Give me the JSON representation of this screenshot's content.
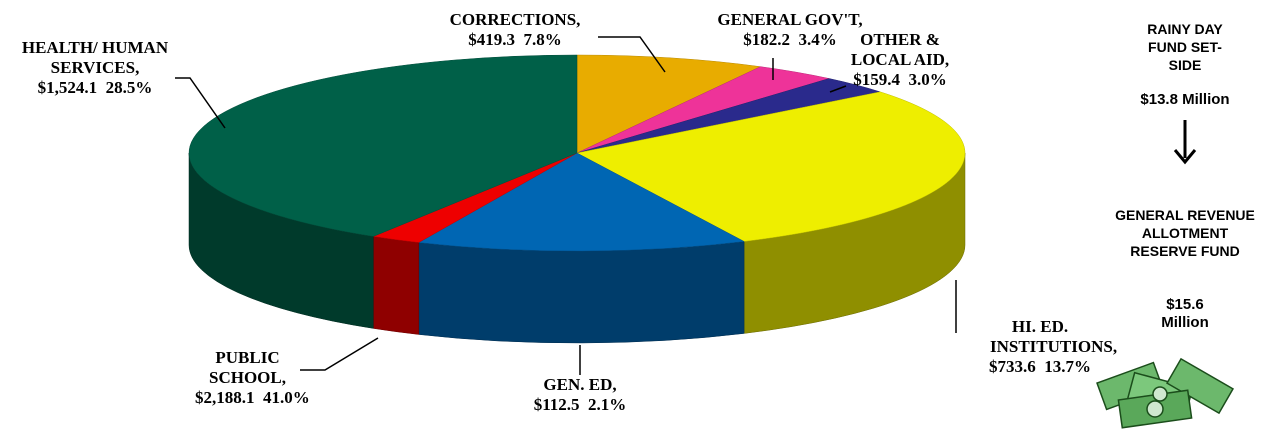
{
  "chart_data": {
    "type": "pie",
    "categories": [
      "CORRECTIONS,",
      "GENERAL GOV'T,",
      "OTHER & LOCAL AID,",
      "HEALTH/ HUMAN SERVICES,",
      "HI. ED. INSTITUTIONS,",
      "GEN. ED,",
      "PUBLIC SCHOOL,"
    ],
    "values": [
      7.8,
      3.4,
      3.0,
      28.5,
      13.7,
      2.1,
      41.0
    ],
    "value_labels": [
      "7.8%",
      "3.4%",
      "3.0%",
      "28.5%",
      "13.7%",
      "2.1%",
      "41.0%"
    ],
    "amounts": [
      419.3,
      182.2,
      159.4,
      1524.1,
      733.6,
      112.5,
      2188.1
    ],
    "amount_labels": [
      "$419.3",
      "$182.2",
      "$159.4",
      "$1,524.1",
      "$733.6",
      "$112.5",
      "$2,188.1"
    ],
    "colors": [
      "#e8ac00",
      "#ee3399",
      "#2a2a8c",
      "#eeee00",
      "#0066b3",
      "#ee0000",
      "#006048"
    ],
    "annotations": [
      "RAINY DAY FUND SET-SIDE",
      "$13.8 Million",
      "GENERAL REVENUE ALLOTMENT RESERVE FUND",
      "$15.6 Million"
    ]
  }
}
